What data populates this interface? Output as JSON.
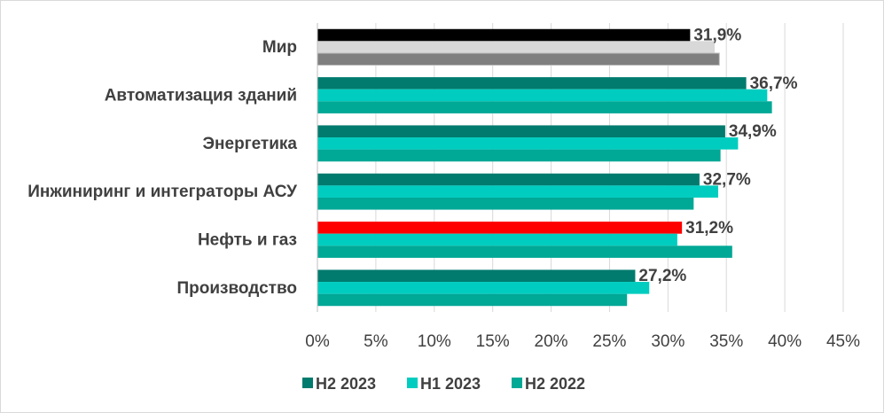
{
  "chart_data": {
    "type": "bar",
    "orientation": "horizontal",
    "title": "",
    "xlabel": "",
    "ylabel": "",
    "xlim": [
      0,
      45
    ],
    "x_ticks": [
      0,
      5,
      10,
      15,
      20,
      25,
      30,
      35,
      40,
      45
    ],
    "x_tick_labels": [
      "0%",
      "5%",
      "10%",
      "15%",
      "20%",
      "25%",
      "30%",
      "35%",
      "40%",
      "45%"
    ],
    "grid": "vertical",
    "legend_position": "bottom",
    "categories": [
      "Мир",
      "Автоматизация зданий",
      "Энергетика",
      "Инжиниринг и интеграторы АСУ",
      "Нефть и газ",
      "Производство"
    ],
    "series": [
      {
        "name": "H2 2023",
        "color": "#007b6e",
        "values": [
          31.9,
          36.7,
          34.9,
          32.7,
          31.2,
          27.2
        ]
      },
      {
        "name": "H1 2023",
        "color": "#00cdbf",
        "values": [
          34.0,
          38.5,
          36.0,
          34.3,
          30.8,
          28.4
        ]
      },
      {
        "name": "H2 2022",
        "color": "#00a896",
        "values": [
          34.4,
          38.9,
          34.5,
          32.2,
          35.5,
          26.5
        ]
      }
    ],
    "category_color_overrides": [
      {
        "category": "Мир",
        "colors": [
          "#000000",
          "#d8d8d8",
          "#7f7f7f"
        ]
      },
      {
        "category": "Нефть и газ",
        "colors": [
          "#ff0000",
          null,
          null
        ]
      }
    ],
    "data_labels": [
      "31,9%",
      "36,7%",
      "34,9%",
      "32,7%",
      "31,2%",
      "27,2%"
    ]
  }
}
